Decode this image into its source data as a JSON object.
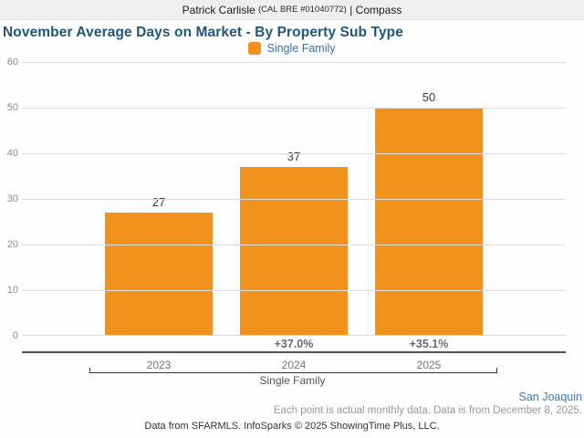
{
  "header": {
    "agent_name": "Patrick Carlisle",
    "license": "(CAL BRE #01040772)",
    "separator": "|",
    "brand": "Compass"
  },
  "title": "November Average Days on Market - By Property Sub Type",
  "legend": {
    "label": "Single Family",
    "swatch_icon": "orange-square-icon",
    "color": "#F1911E"
  },
  "chart_data": {
    "type": "bar",
    "title": "November Average Days on Market - By Property Sub Type",
    "categories": [
      "2023",
      "2024",
      "2025"
    ],
    "values": [
      27,
      37,
      50
    ],
    "bar_labels": [
      "27",
      "37",
      "50"
    ],
    "pct_change": [
      "",
      "+37.0%",
      "+35.1%"
    ],
    "series": [
      {
        "name": "Single Family",
        "values": [
          27,
          37,
          50
        ]
      }
    ],
    "group_label": "Single Family",
    "xlabel": "Single Family",
    "ylabel": "",
    "ylim": [
      0,
      60
    ],
    "yticks": [
      0,
      10,
      20,
      30,
      40,
      50,
      60
    ],
    "grid": true,
    "legend_entries": [
      "Single Family"
    ],
    "legend_position": "top-center",
    "series_color": "#F1911E",
    "gridline_color": "#DDDDDD"
  },
  "footer": {
    "region_link": "San Joaquin",
    "note": "Each point is actual monthly data. Data is from December 8, 2025.",
    "attribution": "Data from SFARMLS. InfoSparks © 2025 ShowingTime Plus, LLC."
  }
}
